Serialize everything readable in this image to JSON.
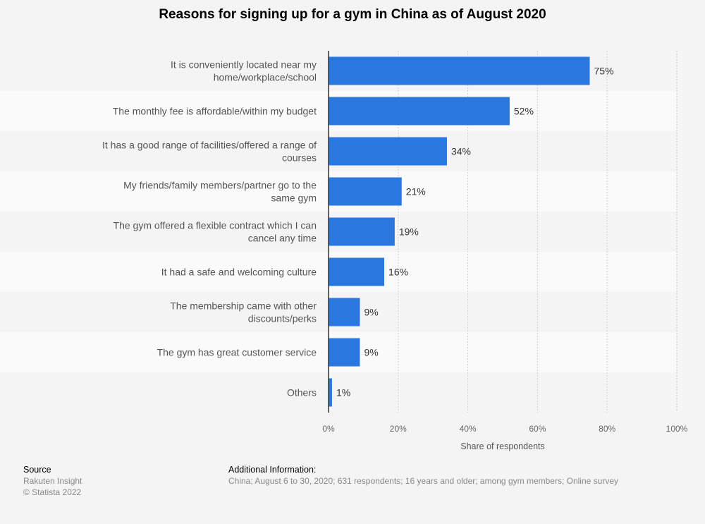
{
  "chart_data": {
    "type": "bar",
    "orientation": "horizontal",
    "title": "Reasons for signing up for a gym in China as of August 2020",
    "categories": [
      [
        "It is conveniently located near my",
        "home/workplace/school"
      ],
      [
        "The monthly fee is affordable/within my budget"
      ],
      [
        "It has a good range of facilities/offered a range of",
        "courses"
      ],
      [
        "My friends/family members/partner go to the",
        "same gym"
      ],
      [
        "The gym offered a flexible contract which I can",
        "cancel any time"
      ],
      [
        "It had a safe and welcoming culture"
      ],
      [
        "The membership came with other",
        "discounts/perks"
      ],
      [
        "The gym has great customer service"
      ],
      [
        "Others"
      ]
    ],
    "values": [
      75,
      52,
      34,
      21,
      19,
      16,
      9,
      9,
      1
    ],
    "value_labels": [
      "75%",
      "52%",
      "34%",
      "21%",
      "19%",
      "16%",
      "9%",
      "9%",
      "1%"
    ],
    "xlabel": "Share of respondents",
    "ylabel": "",
    "xlim": [
      0,
      100
    ],
    "xticks": [
      "0%",
      "20%",
      "40%",
      "60%",
      "80%",
      "100%"
    ],
    "grid": true,
    "bar_color": "#2a77df"
  },
  "footer": {
    "source_heading": "Source",
    "source_lines": [
      "Rakuten Insight",
      "© Statista 2022"
    ],
    "info_heading": "Additional Information:",
    "info_text": "China; August 6 to 30, 2020; 631 respondents; 16 years and older; among gym members; Online survey"
  }
}
